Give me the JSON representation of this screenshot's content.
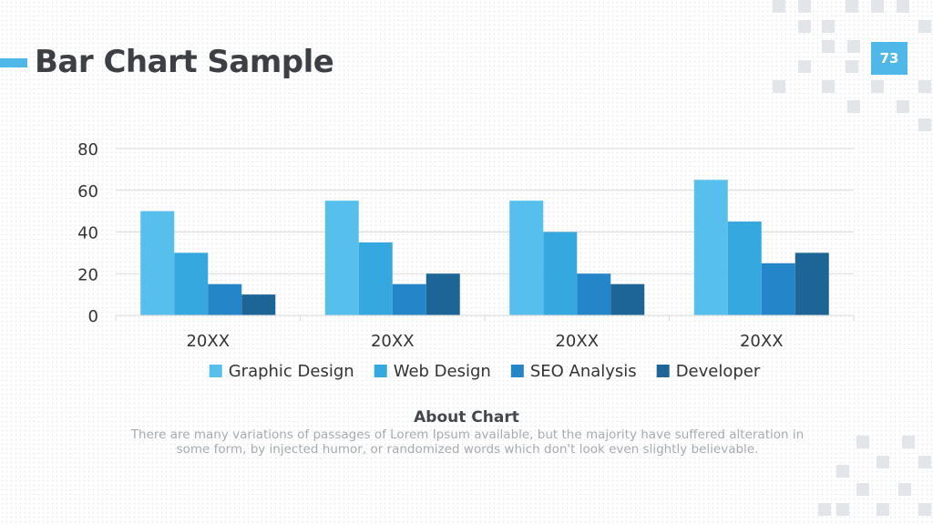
{
  "slide": {
    "title": "Bar Chart Sample",
    "page_number": "73",
    "accent_color": "#4fb8e8"
  },
  "about": {
    "title": "About Chart",
    "text": "There are many variations of passages of Lorem Ipsum available, but the majority have suffered alteration in some form, by injected humor, or randomized words which don't look even slightly believable."
  },
  "chart_data": {
    "type": "bar",
    "categories": [
      "20XX",
      "20XX",
      "20XX",
      "20XX"
    ],
    "series": [
      {
        "name": "Graphic Design",
        "values": [
          50,
          55,
          55,
          65
        ],
        "color": "#57bfec"
      },
      {
        "name": "Web Design",
        "values": [
          30,
          35,
          40,
          45
        ],
        "color": "#36a8e0"
      },
      {
        "name": "SEO Analysis",
        "values": [
          15,
          15,
          20,
          25
        ],
        "color": "#2486c8"
      },
      {
        "name": "Developer",
        "values": [
          10,
          20,
          15,
          30
        ],
        "color": "#1c6596"
      }
    ],
    "ylim": [
      0,
      80
    ],
    "yticks": [
      0,
      20,
      40,
      60,
      80
    ],
    "grid": true,
    "legend": "bottom"
  }
}
